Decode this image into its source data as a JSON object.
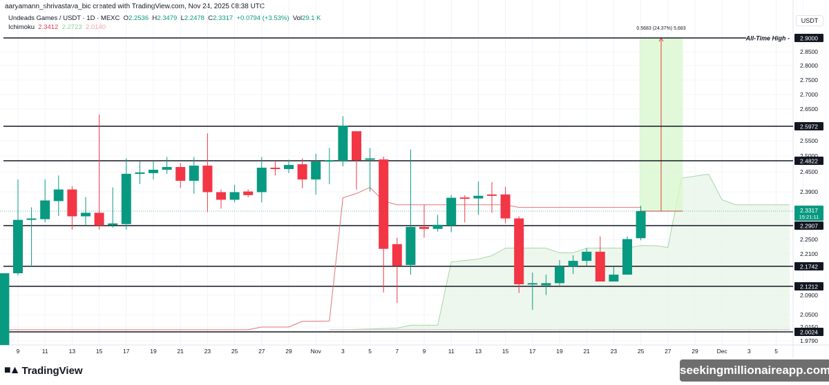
{
  "header": {
    "credit": "aaryamann_shrivastava_bic created with TradingView.com, Nov 24, 2025 08:38 UTC",
    "symbol": "Undeads Games / USDT · 1D · MEXC",
    "open_label": "O",
    "open": "2.2536",
    "high_label": "H",
    "high": "2.3479",
    "low_label": "L",
    "low": "2.2478",
    "close_label": "C",
    "close": "2.3317",
    "change": "+0.0794 (+3.53%)",
    "vol_label": "Vol",
    "vol": "29.1 K",
    "indicator": "Ichimoku",
    "ichimoku_values": [
      "2.3412",
      "2.2723",
      "2.0140"
    ]
  },
  "currency_button": "USDT",
  "footer": {
    "brand": "TradingView",
    "watermark": "seekingmillionaireapp.com"
  },
  "colors": {
    "up": "#089981",
    "down": "#f23645",
    "baseline": "#e57373",
    "cloud": "#e8f5e9",
    "measure": "#d9f7cf"
  },
  "chart_data": {
    "type": "candlestick",
    "x_tick_labels": [
      "9",
      "11",
      "13",
      "15",
      "17",
      "19",
      "21",
      "23",
      "25",
      "27",
      "29",
      "Nov",
      "3",
      "5",
      "7",
      "9",
      "11",
      "13",
      "15",
      "17",
      "19",
      "21",
      "23",
      "25",
      "27",
      "29",
      "Dec",
      "3",
      "5"
    ],
    "y_tick_labels": [
      "2.8500",
      "2.8000",
      "2.7500",
      "2.7000",
      "2.6500",
      "2.5500",
      "2.5000",
      "2.4500",
      "2.3900",
      "2.2500",
      "2.2100",
      "2.0900",
      "2.0500",
      "2.0150",
      "1.9790"
    ],
    "levels": [
      {
        "price": 2.9,
        "label": "2.9000",
        "note": "All-Time High"
      },
      {
        "price": 2.5972,
        "label": "2.5972"
      },
      {
        "price": 2.4822,
        "label": "2.4822"
      },
      {
        "price": 2.2907,
        "label": "2.2907"
      },
      {
        "price": 2.1742,
        "label": "2.1742"
      },
      {
        "price": 2.1212,
        "label": "2.1212"
      },
      {
        "price": 2.0024,
        "label": "2.0024"
      }
    ],
    "last_price": {
      "value": 2.3317,
      "label": "2.3317",
      "countdown": "15:21:11"
    },
    "measure": {
      "from": 2.3317,
      "to": 2.9,
      "from_date": "Nov 24",
      "to_date": "Nov 27",
      "label": "0.5683 (24.37%) 5,683"
    },
    "candles": [
      {
        "d": "Oct 8",
        "o": 1.968,
        "h": 2.154,
        "l": 1.968,
        "c": 2.154
      },
      {
        "d": "Oct 9",
        "o": 2.154,
        "h": 2.427,
        "l": 2.148,
        "c": 2.307
      },
      {
        "d": "Oct 10",
        "o": 2.307,
        "h": 2.343,
        "l": 2.172,
        "c": 2.311
      },
      {
        "d": "Oct 11",
        "o": 2.309,
        "h": 2.427,
        "l": 2.3,
        "c": 2.364
      },
      {
        "d": "Oct 12",
        "o": 2.362,
        "h": 2.439,
        "l": 2.318,
        "c": 2.397
      },
      {
        "d": "Oct 13",
        "o": 2.397,
        "h": 2.407,
        "l": 2.279,
        "c": 2.317
      },
      {
        "d": "Oct 14",
        "o": 2.317,
        "h": 2.374,
        "l": 2.291,
        "c": 2.327
      },
      {
        "d": "Oct 15",
        "o": 2.327,
        "h": 2.633,
        "l": 2.279,
        "c": 2.291
      },
      {
        "d": "Oct 16",
        "o": 2.292,
        "h": 2.403,
        "l": 2.285,
        "c": 2.297
      },
      {
        "d": "Oct 17",
        "o": 2.295,
        "h": 2.491,
        "l": 2.279,
        "c": 2.444
      },
      {
        "d": "Oct 18",
        "o": 2.444,
        "h": 2.48,
        "l": 2.413,
        "c": 2.448
      },
      {
        "d": "Oct 19",
        "o": 2.446,
        "h": 2.482,
        "l": 2.427,
        "c": 2.456
      },
      {
        "d": "Oct 20",
        "o": 2.456,
        "h": 2.496,
        "l": 2.444,
        "c": 2.464
      },
      {
        "d": "Oct 21",
        "o": 2.464,
        "h": 2.476,
        "l": 2.401,
        "c": 2.423
      },
      {
        "d": "Oct 22",
        "o": 2.423,
        "h": 2.496,
        "l": 2.384,
        "c": 2.468
      },
      {
        "d": "Oct 23",
        "o": 2.468,
        "h": 2.574,
        "l": 2.329,
        "c": 2.389
      },
      {
        "d": "Oct 24",
        "o": 2.389,
        "h": 2.397,
        "l": 2.339,
        "c": 2.366
      },
      {
        "d": "Oct 25",
        "o": 2.366,
        "h": 2.411,
        "l": 2.358,
        "c": 2.389
      },
      {
        "d": "Oct 26",
        "o": 2.391,
        "h": 2.397,
        "l": 2.374,
        "c": 2.38
      },
      {
        "d": "Oct 27",
        "o": 2.389,
        "h": 2.496,
        "l": 2.358,
        "c": 2.462
      },
      {
        "d": "Oct 28",
        "o": 2.462,
        "h": 2.482,
        "l": 2.439,
        "c": 2.458
      },
      {
        "d": "Oct 29",
        "o": 2.458,
        "h": 2.486,
        "l": 2.446,
        "c": 2.47
      },
      {
        "d": "Oct 30",
        "o": 2.472,
        "h": 2.491,
        "l": 2.401,
        "c": 2.427
      },
      {
        "d": "Oct 31",
        "o": 2.427,
        "h": 2.507,
        "l": 2.382,
        "c": 2.48
      },
      {
        "d": "Nov 1",
        "o": 2.48,
        "h": 2.526,
        "l": 2.413,
        "c": 2.484
      },
      {
        "d": "Nov 2",
        "o": 2.482,
        "h": 2.628,
        "l": 2.466,
        "c": 2.599
      },
      {
        "d": "Nov 3",
        "o": 2.581,
        "h": 2.581,
        "l": 2.397,
        "c": 2.484
      },
      {
        "d": "Nov 4",
        "o": 2.487,
        "h": 2.526,
        "l": 2.391,
        "c": 2.491
      },
      {
        "d": "Nov 5",
        "o": 2.487,
        "h": 2.498,
        "l": 2.1,
        "c": 2.224
      },
      {
        "d": "Nov 6",
        "o": 2.237,
        "h": 2.255,
        "l": 2.074,
        "c": 2.176
      },
      {
        "d": "Nov 7",
        "o": 2.178,
        "h": 2.521,
        "l": 2.15,
        "c": 2.287
      },
      {
        "d": "Nov 8",
        "o": 2.287,
        "h": 2.351,
        "l": 2.255,
        "c": 2.281
      },
      {
        "d": "Nov 9",
        "o": 2.281,
        "h": 2.321,
        "l": 2.273,
        "c": 2.293
      },
      {
        "d": "Nov 10",
        "o": 2.291,
        "h": 2.38,
        "l": 2.271,
        "c": 2.372
      },
      {
        "d": "Nov 11",
        "o": 2.373,
        "h": 2.38,
        "l": 2.3,
        "c": 2.37
      },
      {
        "d": "Nov 12",
        "o": 2.37,
        "h": 2.421,
        "l": 2.321,
        "c": 2.378
      },
      {
        "d": "Nov 13",
        "o": 2.382,
        "h": 2.419,
        "l": 2.327,
        "c": 2.378
      },
      {
        "d": "Nov 14",
        "o": 2.382,
        "h": 2.405,
        "l": 2.297,
        "c": 2.311
      },
      {
        "d": "Nov 15",
        "o": 2.311,
        "h": 2.317,
        "l": 2.098,
        "c": 2.125
      },
      {
        "d": "Nov 16",
        "o": 2.125,
        "h": 2.156,
        "l": 2.06,
        "c": 2.127
      },
      {
        "d": "Nov 17",
        "o": 2.123,
        "h": 2.15,
        "l": 2.091,
        "c": 2.127
      },
      {
        "d": "Nov 18",
        "o": 2.127,
        "h": 2.192,
        "l": 2.123,
        "c": 2.174
      },
      {
        "d": "Nov 19",
        "o": 2.174,
        "h": 2.206,
        "l": 2.152,
        "c": 2.19
      },
      {
        "d": "Nov 20",
        "o": 2.19,
        "h": 2.226,
        "l": 2.176,
        "c": 2.216
      },
      {
        "d": "Nov 21",
        "o": 2.216,
        "h": 2.259,
        "l": 2.13,
        "c": 2.13
      },
      {
        "d": "Nov 22",
        "o": 2.13,
        "h": 2.172,
        "l": 2.13,
        "c": 2.15
      },
      {
        "d": "Nov 23",
        "o": 2.15,
        "h": 2.259,
        "l": 2.15,
        "c": 2.251
      },
      {
        "d": "Nov 24",
        "o": 2.2536,
        "h": 2.3479,
        "l": 2.2478,
        "c": 2.3317
      }
    ],
    "ichimoku_line": [
      {
        "d": "Oct 8",
        "v": 2.008
      },
      {
        "d": "Oct 26",
        "v": 2.008
      },
      {
        "d": "Oct 27",
        "v": 2.015
      },
      {
        "d": "Oct 29",
        "v": 2.015
      },
      {
        "d": "Oct 30",
        "v": 2.031
      },
      {
        "d": "Nov 1",
        "v": 2.032
      },
      {
        "d": "Nov 2",
        "v": 2.372
      },
      {
        "d": "Nov 3",
        "v": 2.385
      },
      {
        "d": "Nov 4",
        "v": 2.403
      },
      {
        "d": "Nov 5",
        "v": 2.362
      },
      {
        "d": "Nov 6",
        "v": 2.351
      },
      {
        "d": "Nov 14",
        "v": 2.351
      },
      {
        "d": "Nov 15",
        "v": 2.343
      },
      {
        "d": "Nov 24",
        "v": 2.343
      }
    ],
    "cloud_top": [
      {
        "d": "Nov 2",
        "v": 2.008
      },
      {
        "d": "Nov 6",
        "v": 2.012
      },
      {
        "d": "Nov 7",
        "v": 2.02
      },
      {
        "d": "Nov 9",
        "v": 2.02
      },
      {
        "d": "Nov 10",
        "v": 2.187
      },
      {
        "d": "Nov 12",
        "v": 2.195
      },
      {
        "d": "Nov 13",
        "v": 2.205
      },
      {
        "d": "Nov 14",
        "v": 2.226
      },
      {
        "d": "Nov 17",
        "v": 2.226
      },
      {
        "d": "Nov 18",
        "v": 2.213
      },
      {
        "d": "Nov 19",
        "v": 2.213
      },
      {
        "d": "Nov 20",
        "v": 2.226
      },
      {
        "d": "Nov 23",
        "v": 2.226
      },
      {
        "d": "Nov 24",
        "v": 2.233
      },
      {
        "d": "Nov 25",
        "v": 2.233
      },
      {
        "d": "Nov 26",
        "v": 2.228
      },
      {
        "d": "Nov 27",
        "v": 2.431
      },
      {
        "d": "Nov 29",
        "v": 2.443
      },
      {
        "d": "Nov 30",
        "v": 2.366
      },
      {
        "d": "Dec 1",
        "v": 2.351
      },
      {
        "d": "Dec 5",
        "v": 2.351
      }
    ],
    "cloud_bottom": 2.008
  }
}
